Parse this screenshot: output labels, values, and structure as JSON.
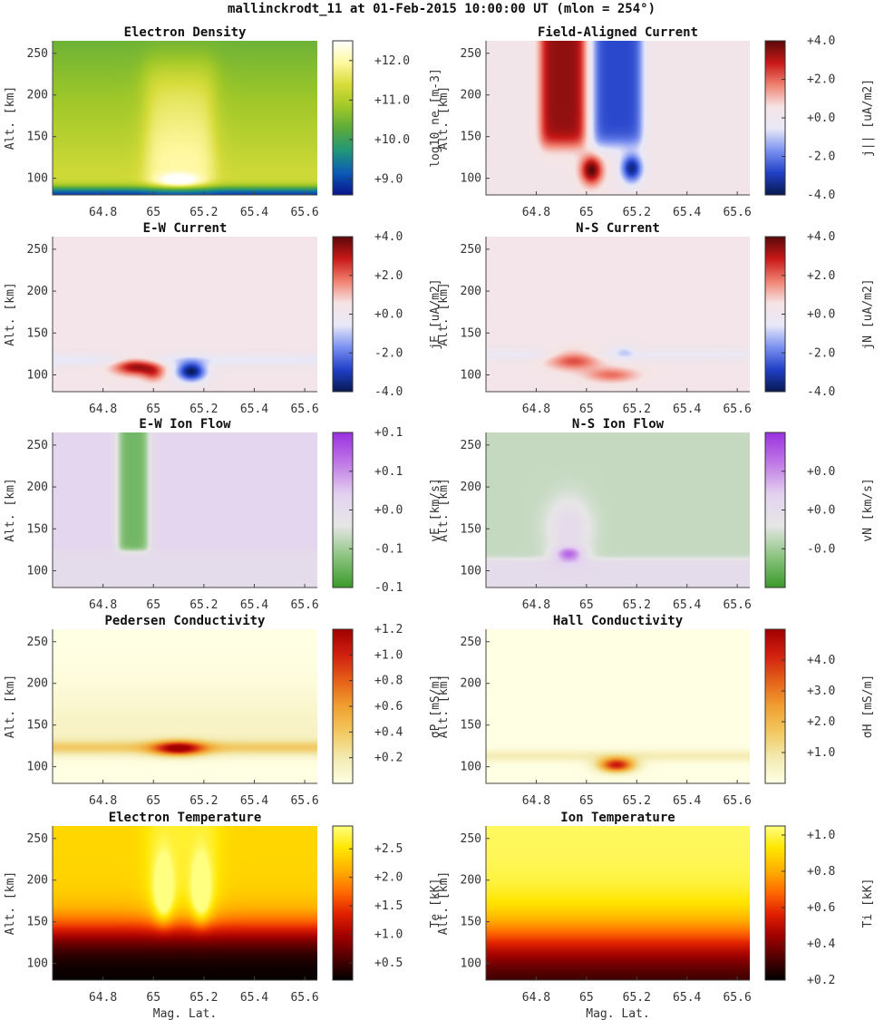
{
  "figure": {
    "title": "mallinckrodt_11 at 01-Feb-2015 10:00:00 UT (mlon = 254°)",
    "xlabel": "Mag. Lat.",
    "ylabel": "Alt. [km]"
  },
  "colormaps": {
    "viridisish": [
      "#08148c",
      "#0d5ab4",
      "#22967a",
      "#5aaa3c",
      "#a0c828",
      "#d6dc3a",
      "#fff8a0",
      "#ffffff"
    ],
    "bwr": [
      "#08184f",
      "#2040c8",
      "#7a90f0",
      "#e8e8f8",
      "#f6e4e4",
      "#f08070",
      "#c81818",
      "#5a0808"
    ],
    "purplegreen": [
      "#3a9a2a",
      "#8cc480",
      "#e6e6e6",
      "#e4d2f0",
      "#c07ae6",
      "#9a30e0"
    ],
    "ylorrd": [
      "#ffffe4",
      "#f3eab0",
      "#f2c860",
      "#f0a030",
      "#e56018",
      "#d02010",
      "#a00000"
    ],
    "hot": [
      "#000000",
      "#500000",
      "#a00000",
      "#e02000",
      "#ff6a00",
      "#ffb000",
      "#ffe600",
      "#ffff80"
    ]
  },
  "chart_data": [
    {
      "type": "heatmap",
      "title": "Electron Density",
      "colorbar_label": "log10 ne [m-3]",
      "cmap": "viridisish",
      "xlim": [
        64.6,
        65.65
      ],
      "ylim": [
        80,
        265
      ],
      "xticks": [
        64.8,
        65.0,
        65.2,
        65.4,
        65.6
      ],
      "xtick_labels": [
        "64.8",
        "65",
        "65.2",
        "65.4",
        "65.6"
      ],
      "yticks": [
        100,
        150,
        200,
        250
      ],
      "ytick_labels": [
        "100",
        "150",
        "200",
        "250"
      ],
      "clim": [
        8.6,
        12.5
      ],
      "cticks": [
        9,
        10,
        11,
        12
      ],
      "ctick_labels": [
        "+9.0",
        "+10.0",
        "+11.0",
        "+12.0"
      ],
      "field": "density",
      "show_xlabel": false
    },
    {
      "type": "heatmap",
      "title": "Field-Aligned Current",
      "colorbar_label": "j|| [uA/m2]",
      "cmap": "bwr",
      "xlim": [
        64.6,
        65.65
      ],
      "ylim": [
        80,
        265
      ],
      "xticks": [
        64.8,
        65.0,
        65.2,
        65.4,
        65.6
      ],
      "xtick_labels": [
        "64.8",
        "65",
        "65.2",
        "65.4",
        "65.6"
      ],
      "yticks": [
        100,
        150,
        200,
        250
      ],
      "ytick_labels": [
        "100",
        "150",
        "200",
        "250"
      ],
      "clim": [
        -4,
        4
      ],
      "cticks": [
        -4,
        -2,
        0,
        2,
        4
      ],
      "ctick_labels": [
        "-4.0",
        "-2.0",
        "+0.0",
        "+2.0",
        "+4.0"
      ],
      "field": "fac",
      "show_xlabel": false
    },
    {
      "type": "heatmap",
      "title": "E-W Current",
      "colorbar_label": "jE [uA/m2]",
      "cmap": "bwr",
      "xlim": [
        64.6,
        65.65
      ],
      "ylim": [
        80,
        265
      ],
      "xticks": [
        64.8,
        65.0,
        65.2,
        65.4,
        65.6
      ],
      "xtick_labels": [
        "64.8",
        "65",
        "65.2",
        "65.4",
        "65.6"
      ],
      "yticks": [
        100,
        150,
        200,
        250
      ],
      "ytick_labels": [
        "100",
        "150",
        "200",
        "250"
      ],
      "clim": [
        -4,
        4
      ],
      "cticks": [
        -4,
        -2,
        0,
        2,
        4
      ],
      "ctick_labels": [
        "-4.0",
        "-2.0",
        "+0.0",
        "+2.0",
        "+4.0"
      ],
      "field": "jE",
      "show_xlabel": false
    },
    {
      "type": "heatmap",
      "title": "N-S Current",
      "colorbar_label": "jN [uA/m2]",
      "cmap": "bwr",
      "xlim": [
        64.6,
        65.65
      ],
      "ylim": [
        80,
        265
      ],
      "xticks": [
        64.8,
        65.0,
        65.2,
        65.4,
        65.6
      ],
      "xtick_labels": [
        "64.8",
        "65",
        "65.2",
        "65.4",
        "65.6"
      ],
      "yticks": [
        100,
        150,
        200,
        250
      ],
      "ytick_labels": [
        "100",
        "150",
        "200",
        "250"
      ],
      "clim": [
        -4,
        4
      ],
      "cticks": [
        -4,
        -2,
        0,
        2,
        4
      ],
      "ctick_labels": [
        "-4.0",
        "-2.0",
        "+0.0",
        "+2.0",
        "+4.0"
      ],
      "field": "jN",
      "show_xlabel": false
    },
    {
      "type": "heatmap",
      "title": "E-W Ion Flow",
      "colorbar_label": "vE [km/s]",
      "cmap": "purplegreen",
      "xlim": [
        64.6,
        65.65
      ],
      "ylim": [
        80,
        265
      ],
      "xticks": [
        64.8,
        65.0,
        65.2,
        65.4,
        65.6
      ],
      "xtick_labels": [
        "64.8",
        "65",
        "65.2",
        "65.4",
        "65.6"
      ],
      "yticks": [
        100,
        150,
        200,
        250
      ],
      "ytick_labels": [
        "100",
        "150",
        "200",
        "250"
      ],
      "clim": [
        -0.1,
        0.1
      ],
      "cticks": [
        -0.1,
        -0.05,
        0.0,
        0.05,
        0.1
      ],
      "ctick_labels": [
        "-0.1",
        "-0.1",
        "+0.0",
        "+0.1",
        "+0.1"
      ],
      "field": "vE",
      "show_xlabel": false
    },
    {
      "type": "heatmap",
      "title": "N-S Ion Flow",
      "colorbar_label": "vN [km/s]",
      "cmap": "purplegreen",
      "xlim": [
        64.6,
        65.65
      ],
      "ylim": [
        80,
        265
      ],
      "xticks": [
        64.8,
        65.0,
        65.2,
        65.4,
        65.6
      ],
      "xtick_labels": [
        "64.8",
        "65",
        "65.2",
        "65.4",
        "65.6"
      ],
      "yticks": [
        100,
        150,
        200,
        250
      ],
      "ytick_labels": [
        "100",
        "150",
        "200",
        "250"
      ],
      "clim": [
        -0.01,
        0.01
      ],
      "cticks": [
        -0.005,
        0.0,
        0.005
      ],
      "ctick_labels": [
        "-0.0",
        "+0.0",
        "+0.0"
      ],
      "field": "vN",
      "show_xlabel": false
    },
    {
      "type": "heatmap",
      "title": "Pedersen Conductivity",
      "colorbar_label": "σP [mS/m]",
      "cmap": "ylorrd",
      "xlim": [
        64.6,
        65.65
      ],
      "ylim": [
        80,
        265
      ],
      "xticks": [
        64.8,
        65.0,
        65.2,
        65.4,
        65.6
      ],
      "xtick_labels": [
        "64.8",
        "65",
        "65.2",
        "65.4",
        "65.6"
      ],
      "yticks": [
        100,
        150,
        200,
        250
      ],
      "ytick_labels": [
        "100",
        "150",
        "200",
        "250"
      ],
      "clim": [
        0.0,
        1.2
      ],
      "cticks": [
        0.2,
        0.4,
        0.6,
        0.8,
        1.0,
        1.2
      ],
      "ctick_labels": [
        "+0.2",
        "+0.4",
        "+0.6",
        "+0.8",
        "+1.0",
        "+1.2"
      ],
      "field": "sigP",
      "show_xlabel": false
    },
    {
      "type": "heatmap",
      "title": "Hall Conductivity",
      "colorbar_label": "σH [mS/m]",
      "cmap": "ylorrd",
      "xlim": [
        64.6,
        65.65
      ],
      "ylim": [
        80,
        265
      ],
      "xticks": [
        64.8,
        65.0,
        65.2,
        65.4,
        65.6
      ],
      "xtick_labels": [
        "64.8",
        "65",
        "65.2",
        "65.4",
        "65.6"
      ],
      "yticks": [
        100,
        150,
        200,
        250
      ],
      "ytick_labels": [
        "100",
        "150",
        "200",
        "250"
      ],
      "clim": [
        0.0,
        5.0
      ],
      "cticks": [
        1,
        2,
        3,
        4
      ],
      "ctick_labels": [
        "+1.0",
        "+2.0",
        "+3.0",
        "+4.0"
      ],
      "field": "sigH",
      "show_xlabel": false
    },
    {
      "type": "heatmap",
      "title": "Electron Temperature",
      "colorbar_label": "Te [kK]",
      "cmap": "hot",
      "xlim": [
        64.6,
        65.65
      ],
      "ylim": [
        80,
        265
      ],
      "xticks": [
        64.8,
        65.0,
        65.2,
        65.4,
        65.6
      ],
      "xtick_labels": [
        "64.8",
        "65",
        "65.2",
        "65.4",
        "65.6"
      ],
      "yticks": [
        100,
        150,
        200,
        250
      ],
      "ytick_labels": [
        "100",
        "150",
        "200",
        "250"
      ],
      "clim": [
        0.2,
        2.9
      ],
      "cticks": [
        0.5,
        1.0,
        1.5,
        2.0,
        2.5
      ],
      "ctick_labels": [
        "+0.5",
        "+1.0",
        "+1.5",
        "+2.0",
        "+2.5"
      ],
      "field": "Te",
      "show_xlabel": true
    },
    {
      "type": "heatmap",
      "title": "Ion Temperature",
      "colorbar_label": "Ti [kK]",
      "cmap": "hot",
      "xlim": [
        64.6,
        65.65
      ],
      "ylim": [
        80,
        265
      ],
      "xticks": [
        64.8,
        65.0,
        65.2,
        65.4,
        65.6
      ],
      "xtick_labels": [
        "64.8",
        "65",
        "65.2",
        "65.4",
        "65.6"
      ],
      "yticks": [
        100,
        150,
        200,
        250
      ],
      "ytick_labels": [
        "100",
        "150",
        "200",
        "250"
      ],
      "clim": [
        0.2,
        1.05
      ],
      "cticks": [
        0.2,
        0.4,
        0.6,
        0.8,
        1.0
      ],
      "ctick_labels": [
        "+0.2",
        "+0.4",
        "+0.6",
        "+0.8",
        "+1.0"
      ],
      "field": "Ti",
      "show_xlabel": true
    }
  ]
}
